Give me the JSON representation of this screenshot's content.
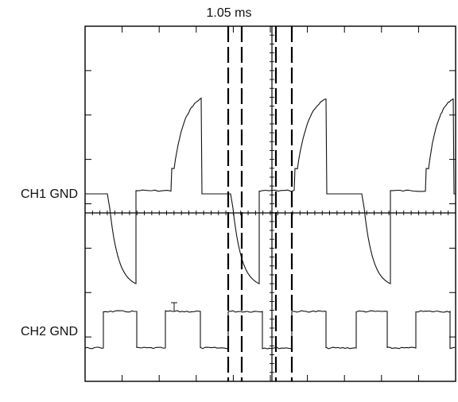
{
  "header": {
    "timing_label": "1.05 ms"
  },
  "channels": {
    "ch1": {
      "label": "CH1 GND"
    },
    "ch2": {
      "label": "CH2 GND"
    }
  },
  "colors": {
    "trace": "#111111",
    "frame": "#000000",
    "background": "#ffffff"
  },
  "chart_data": {
    "type": "line",
    "title": "1.05 ms",
    "grid": "center axes with tick marks",
    "cursors": "two pairs of vertical dashed lines",
    "series": [
      {
        "name": "CH1 GND",
        "shape": "charge/discharge waveform with spikes"
      },
      {
        "name": "CH2 GND",
        "shape": "square wave"
      }
    ]
  }
}
